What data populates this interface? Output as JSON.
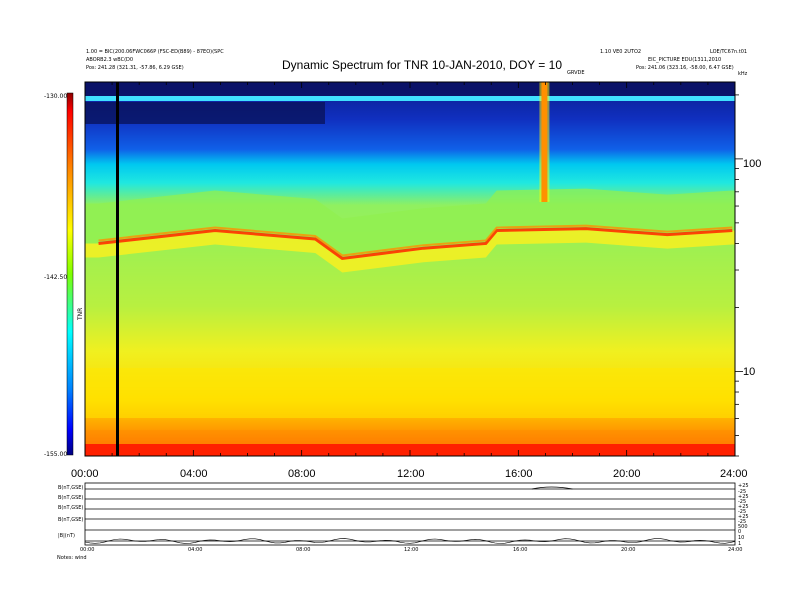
{
  "header": {
    "left_line1": "1.00 = BIC(200.06FWC066P (FSC-ED(B89) - 87EO)(SPC",
    "left_line2": "ABORB2.3 wBC(D0",
    "left_line3": "Pos:   241.28 (321.31, -57.86, 6.29 GSE)",
    "right_line1": "1.10 VE0 2UTO2",
    "right_line2": "EIC_PICTURE EDU(1311,2010",
    "right_line3": "Pos:   241.06 (323.16, -58.00, 6.47 GSE)",
    "corner_right": "LOE/TC67n.t01",
    "freq_unit": "kHz",
    "marker_label": "GRVDE"
  },
  "colorbar_label": "TNR",
  "chart_data": {
    "type": "heatmap",
    "title": "Dynamic Spectrum for TNR 10-JAN-2010, DOY = 10",
    "xlabel": "",
    "ylabel": "",
    "x_tick_labels": [
      "00:00",
      "04:00",
      "08:00",
      "12:00",
      "16:00",
      "20:00",
      "24:00"
    ],
    "x_range_hours": [
      0,
      24
    ],
    "y_scale": "log",
    "y_range": [
      4,
      230
    ],
    "y_tick_labels": [
      "100",
      "10"
    ],
    "colorbar": {
      "range": [
        -155.0,
        -130.0
      ],
      "tick_labels": [
        "-130.00",
        "-142.50",
        "-155.00"
      ],
      "colors": [
        "#8b0000",
        "#ff0000",
        "#ff7f00",
        "#ffff00",
        "#7fff00",
        "#00ffff",
        "#0080ff",
        "#0000ff",
        "#000080"
      ]
    },
    "plasma_line_kHz": [
      {
        "hour": 0.5,
        "f": 40
      },
      {
        "hour": 4.8,
        "f": 46
      },
      {
        "hour": 8.5,
        "f": 42
      },
      {
        "hour": 9.5,
        "f": 34
      },
      {
        "hour": 12.5,
        "f": 38
      },
      {
        "hour": 14.8,
        "f": 40
      },
      {
        "hour": 15.2,
        "f": 46
      },
      {
        "hour": 18.5,
        "f": 47
      },
      {
        "hour": 21.5,
        "f": 44
      },
      {
        "hour": 23.9,
        "f": 46
      }
    ],
    "black_marker_hour": 1.2,
    "burst_hour": 17.0
  },
  "lower_panel": {
    "row_labels": [
      "B(nT,GSE)",
      "B(nT,GSE)",
      "B(nT,GSE)",
      "B(nT,GSE)",
      "|B|(nT)"
    ],
    "right_labels": [
      "+25",
      "-25",
      "+25",
      "-25",
      "+25",
      "-25",
      "+25",
      "-25",
      "500",
      "0",
      "10",
      "1"
    ],
    "x_tick_labels": [
      "00:00",
      "04:00",
      "08:00",
      "12:00",
      "16:00",
      "20:00",
      "24:00"
    ],
    "footer": "Notes:   wind"
  }
}
